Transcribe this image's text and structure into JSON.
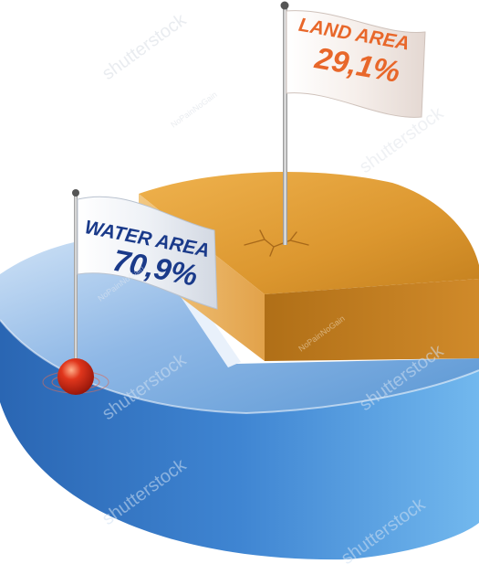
{
  "chart_data": {
    "type": "pie",
    "slices": [
      {
        "category": "WATER AREA",
        "value_label": "70,9%",
        "value": 70.9,
        "color": "#4f8fce"
      },
      {
        "category": "LAND AREA",
        "value_label": "29,1%",
        "value": 29.1,
        "color": "#d9922a"
      }
    ],
    "label_colors": {
      "water": "#1a3a8a",
      "land": "#e8672a"
    },
    "watermarks": [
      "shutterstock",
      "NoPainNoGain"
    ]
  }
}
